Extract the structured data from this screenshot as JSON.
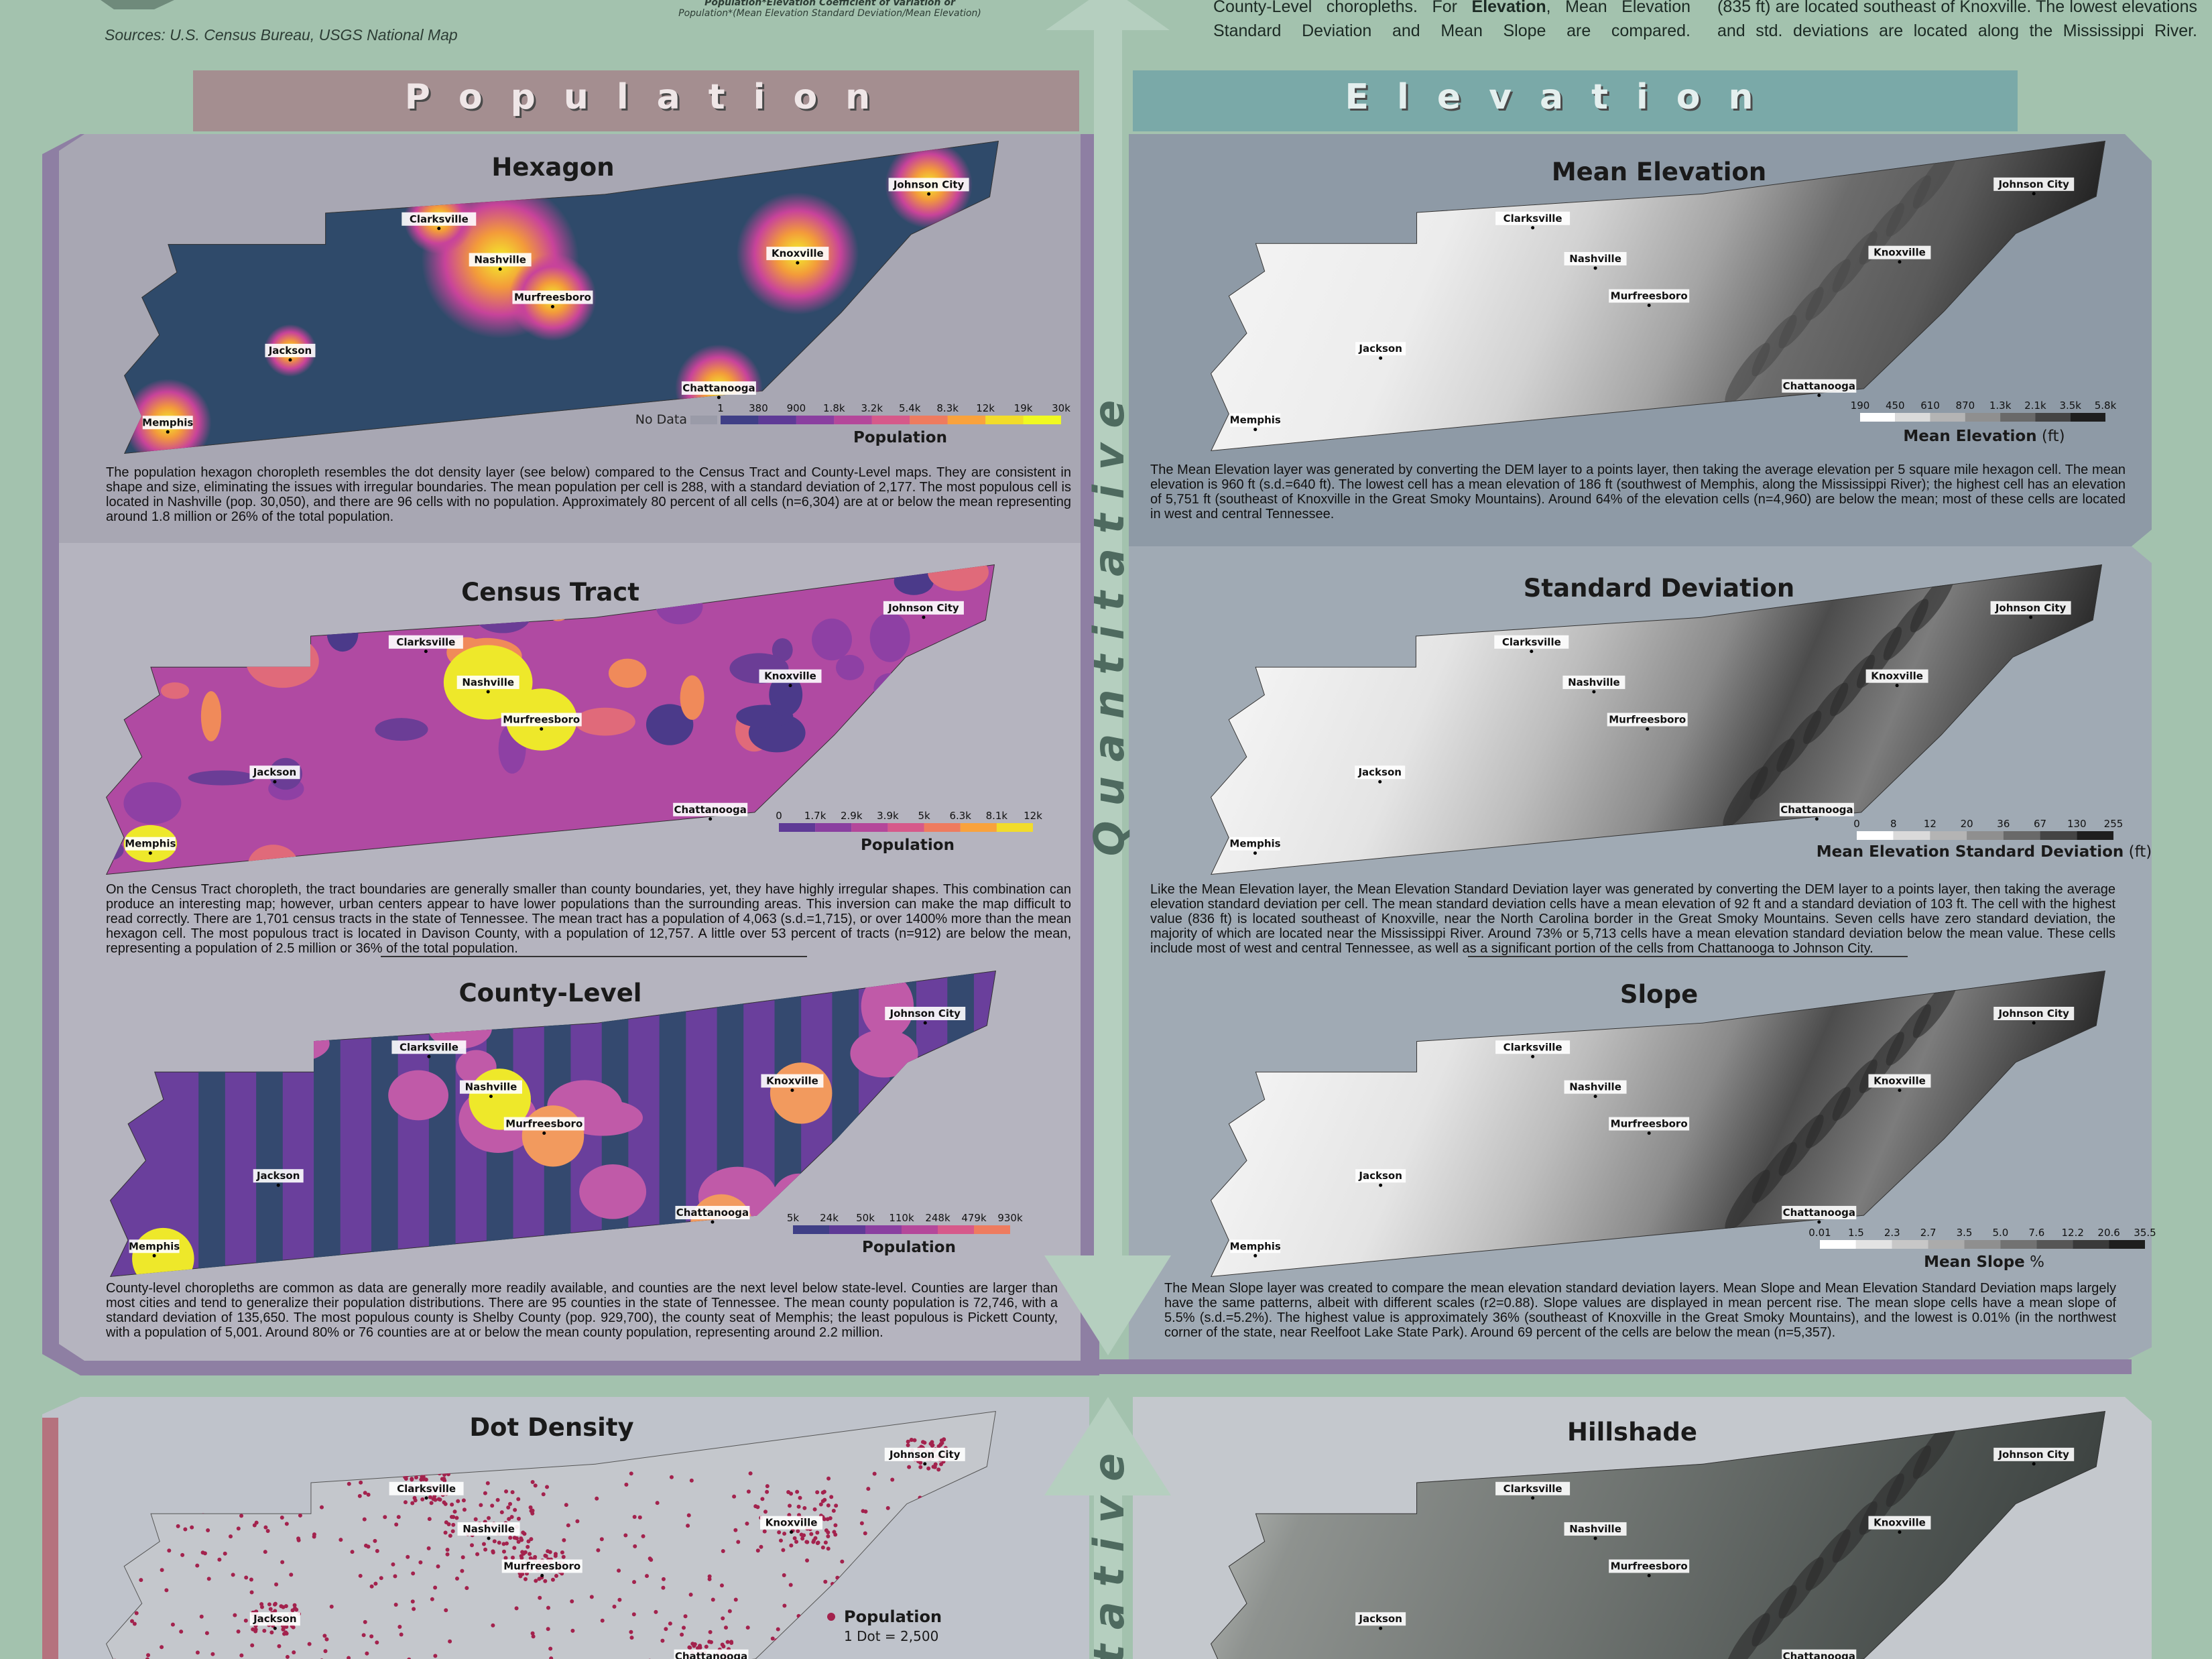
{
  "header": {
    "sources": "Sources: U.S. Census Bureau, USGS National Map",
    "formula": [
      "Population*Elevation Coefficient of Variation or",
      "Population*(Mean Elevation Standard Deviation/Mean Elevation)"
    ],
    "intro_middle": [
      "County-Level choropleths. For ",
      "Elevation",
      ", Mean Elevation Standard Deviation and Mean Slope are compared."
    ],
    "intro_right": "(835 ft) are located southeast of Knoxville. The lowest elevations and std. deviations are located along the Mississippi River."
  },
  "sections": {
    "population": "Population",
    "elevation": "Elevation",
    "quantitative": "Quantitative",
    "qualitative": "itative"
  },
  "cities": [
    "Johnson City",
    "Clarksville",
    "Nashville",
    "Knoxville",
    "Murfreesboro",
    "Jackson",
    "Chattanooga",
    "Memphis"
  ],
  "panels": [
    {
      "title": "Hexagon",
      "legend": {
        "no_data": "No Data",
        "ticks": [
          "1",
          "380",
          "900",
          "1.8k",
          "3.2k",
          "5.4k",
          "8.3k",
          "12k",
          "19k",
          "30k"
        ],
        "title": "Population"
      },
      "description": "The population hexagon choropleth resembles the dot density layer (see below) compared to the Census Tract and County-Level maps. They are consistent in shape and size, eliminating the issues with irregular boundaries. The mean population per cell is 288, with a standard deviation of 2,177. The most populous cell is located in Nashville (pop. 30,050), and there are 96 cells with no population. Approximately 80 percent of all cells (n=6,304) are at or below the mean representing around 1.8 million or 26% of the total population."
    },
    {
      "title": "Census Tract",
      "legend": {
        "ticks": [
          "0",
          "1.7k",
          "2.9k",
          "3.9k",
          "5k",
          "6.3k",
          "8.1k",
          "12k"
        ],
        "title": "Population"
      },
      "description": "On the Census Tract choropleth, the tract boundaries are generally smaller than county boundaries, yet, they have highly irregular shapes. This combination can produce an interesting map; however, urban centers appear to have lower populations than the surrounding areas. This inversion can make the map difficult to read correctly. There are 1,701 census tracts in the state of Tennessee. The mean tract has a population of 4,063 (s.d.=1,715), or over 1400% more than the mean hexagon cell. The most populous tract is located in Davison County, with a population of 12,757. A little over 53 percent of tracts (n=912) are below the mean, representing a population of 2.5 million or 36% of the total population."
    },
    {
      "title": "County-Level",
      "legend": {
        "ticks": [
          "5k",
          "24k",
          "50k",
          "110k",
          "248k",
          "479k",
          "930k"
        ],
        "title": "Population"
      },
      "description": "County-level choropleths are common as data are generally more readily available, and counties are the next level below state-level. Counties are larger than most cities and tend to generalize their population distributions. There are 95 counties in the state of Tennessee. The mean county population is 72,746, with a standard deviation of 135,650. The most populous county is Shelby County (pop. 929,700), the county seat of Memphis; the least populous is Pickett County, with a population of 5,001. Around 80% or 76 counties are at or below the mean county population, representing around 2.2 million."
    },
    {
      "title": "Mean Elevation",
      "legend": {
        "ticks": [
          "190",
          "450",
          "610",
          "870",
          "1.3k",
          "2.1k",
          "3.5k",
          "5.8k"
        ],
        "title": "Mean Elevation",
        "unit": "(ft)"
      },
      "description": "The Mean Elevation layer was generated by converting the DEM layer to a points layer, then taking the average elevation per 5 square mile hexagon cell. The mean elevation is 960 ft (s.d.=640 ft). The lowest cell has a mean elevation of 186 ft (southwest of Memphis, along the Mississippi River); the highest cell has an elevation of 5,751 ft (southeast of Knoxville in the Great Smoky Mountains). Around 64% of the elevation cells (n=4,960) are below the mean; most of these cells are located in west and central Tennessee."
    },
    {
      "title": "Standard Deviation",
      "legend": {
        "ticks": [
          "0",
          "8",
          "12",
          "20",
          "36",
          "67",
          "130",
          "255"
        ],
        "title": "Mean Elevation Standard Deviation",
        "unit": "(ft)"
      },
      "description": "Like the Mean Elevation layer, the Mean Elevation Standard Deviation layer was generated by converting the DEM layer to a points layer, then taking the average elevation standard deviation per cell. The mean standard deviation cells have a mean elevation of 92 ft and a standard deviation of 103 ft. The cell with the highest value (836 ft) is located southeast of Knoxville, near the North Carolina border in the Great Smoky Mountains. Seven cells have zero standard deviation, the majority of which are located near the Mississippi River. Around 73% or 5,713 cells have a mean elevation standard deviation below the mean value. These cells include most of west and central Tennessee, as well as a significant portion of the cells from Chattanooga to Johnson City."
    },
    {
      "title": "Slope",
      "legend": {
        "ticks": [
          "0.01",
          "1.5",
          "2.3",
          "2.7",
          "3.5",
          "5.0",
          "7.6",
          "12.2",
          "20.6",
          "35.5"
        ],
        "title": "Mean Slope",
        "unit": "%"
      },
      "description": "The Mean Slope layer was created to compare the mean elevation standard deviation layers. Mean Slope and Mean Elevation Standard Deviation maps largely have the same patterns, albeit with different scales (r2=0.88). Slope values are displayed in mean percent rise. The mean slope cells have a mean slope of 5.5% (s.d.=5.2%). The highest value is approximately 36% (southeast of Knoxville in the Great Smoky Mountains), and the lowest is 0.01% (in the northwest corner of the state, near Reelfoot Lake State Park). Around 69 percent of the cells are below the mean (n=5,357)."
    }
  ],
  "dot_density": {
    "title": "Dot Density",
    "legend_title": "Population",
    "legend_note": "1 Dot = 2,500"
  },
  "hillshade": {
    "title": "Hillshade"
  }
}
